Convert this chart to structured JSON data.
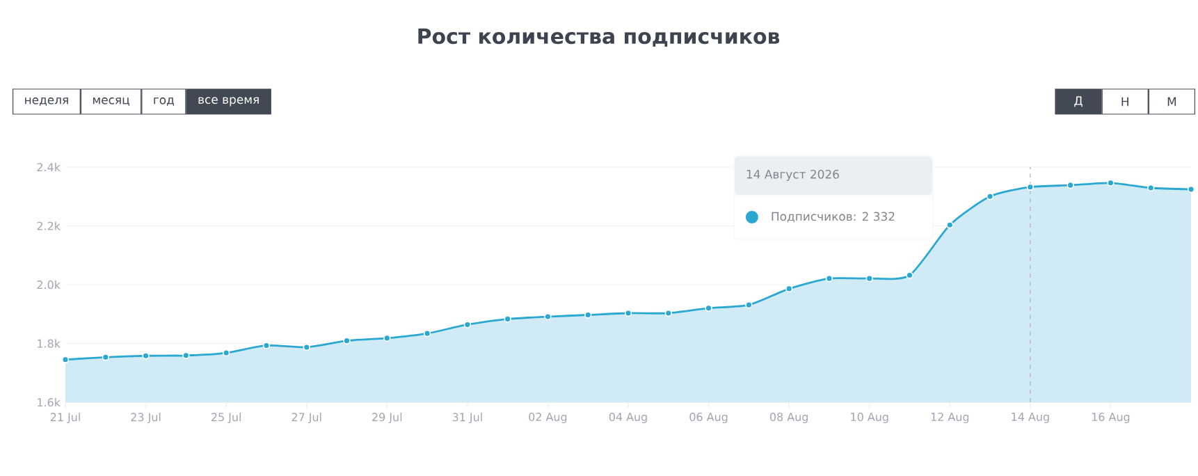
{
  "chart_data": {
    "type": "area",
    "title": "Рост количества подписчиков",
    "x": [
      "2026-07-21",
      "2026-07-22",
      "2026-07-23",
      "2026-07-24",
      "2026-07-25",
      "2026-07-26",
      "2026-07-27",
      "2026-07-28",
      "2026-07-29",
      "2026-07-30",
      "2026-07-31",
      "2026-08-01",
      "2026-08-02",
      "2026-08-03",
      "2026-08-04",
      "2026-08-05",
      "2026-08-06",
      "2026-08-07",
      "2026-08-08",
      "2026-08-09",
      "2026-08-10",
      "2026-08-11",
      "2026-08-12",
      "2026-08-13",
      "2026-08-14",
      "2026-08-15",
      "2026-08-16",
      "2026-08-17",
      "2026-08-18"
    ],
    "series": [
      {
        "color": "#2aa8d2",
        "values": [
          1745,
          1753,
          1758,
          1759,
          1768,
          1793,
          1787,
          1809,
          1818,
          1834,
          1864,
          1883,
          1891,
          1897,
          1903,
          1903,
          1920,
          1931,
          1986,
          2021,
          2021,
          2032,
          2203,
          2300,
          2332,
          2338,
          2346,
          2329,
          2324
        ]
      }
    ],
    "xlim": [
      "2026-07-21",
      "2026-08-18"
    ],
    "xticks": [
      {
        "value": "2026-07-21",
        "label": "21 Jul"
      },
      {
        "value": "2026-07-23",
        "label": "23 Jul"
      },
      {
        "value": "2026-07-25",
        "label": "25 Jul"
      },
      {
        "value": "2026-07-27",
        "label": "27 Jul"
      },
      {
        "value": "2026-07-29",
        "label": "29 Jul"
      },
      {
        "value": "2026-07-31",
        "label": "31 Jul"
      },
      {
        "value": "2026-08-02",
        "label": "02 Aug"
      },
      {
        "value": "2026-08-04",
        "label": "04 Aug"
      },
      {
        "value": "2026-08-06",
        "label": "06 Aug"
      },
      {
        "value": "2026-08-08",
        "label": "08 Aug"
      },
      {
        "value": "2026-08-10",
        "label": "10 Aug"
      },
      {
        "value": "2026-08-12",
        "label": "12 Aug"
      },
      {
        "value": "2026-08-14",
        "label": "14 Aug"
      },
      {
        "value": "2026-08-16",
        "label": "16 Aug"
      }
    ],
    "ylim": [
      1600,
      2400
    ],
    "yticks": [
      {
        "value": 1600,
        "label": "1.6k"
      },
      {
        "value": 1800,
        "label": "1.8k"
      },
      {
        "value": 2000,
        "label": "2.0k"
      },
      {
        "value": 2200,
        "label": "2.2k"
      },
      {
        "value": 2400,
        "label": "2.4k"
      }
    ],
    "grid": "y",
    "marker": "circle",
    "line_style": "solid",
    "ref_lines": [
      {
        "axis": "x",
        "value": "2026-08-14",
        "line_style": "dashed",
        "color": "#aab0b8"
      }
    ],
    "annotations": [
      "неделя",
      "месяц",
      "год",
      "все время",
      "Д",
      "Н",
      "М",
      "14 Август 2026",
      "Подписчиков: 2 332"
    ]
  }
}
